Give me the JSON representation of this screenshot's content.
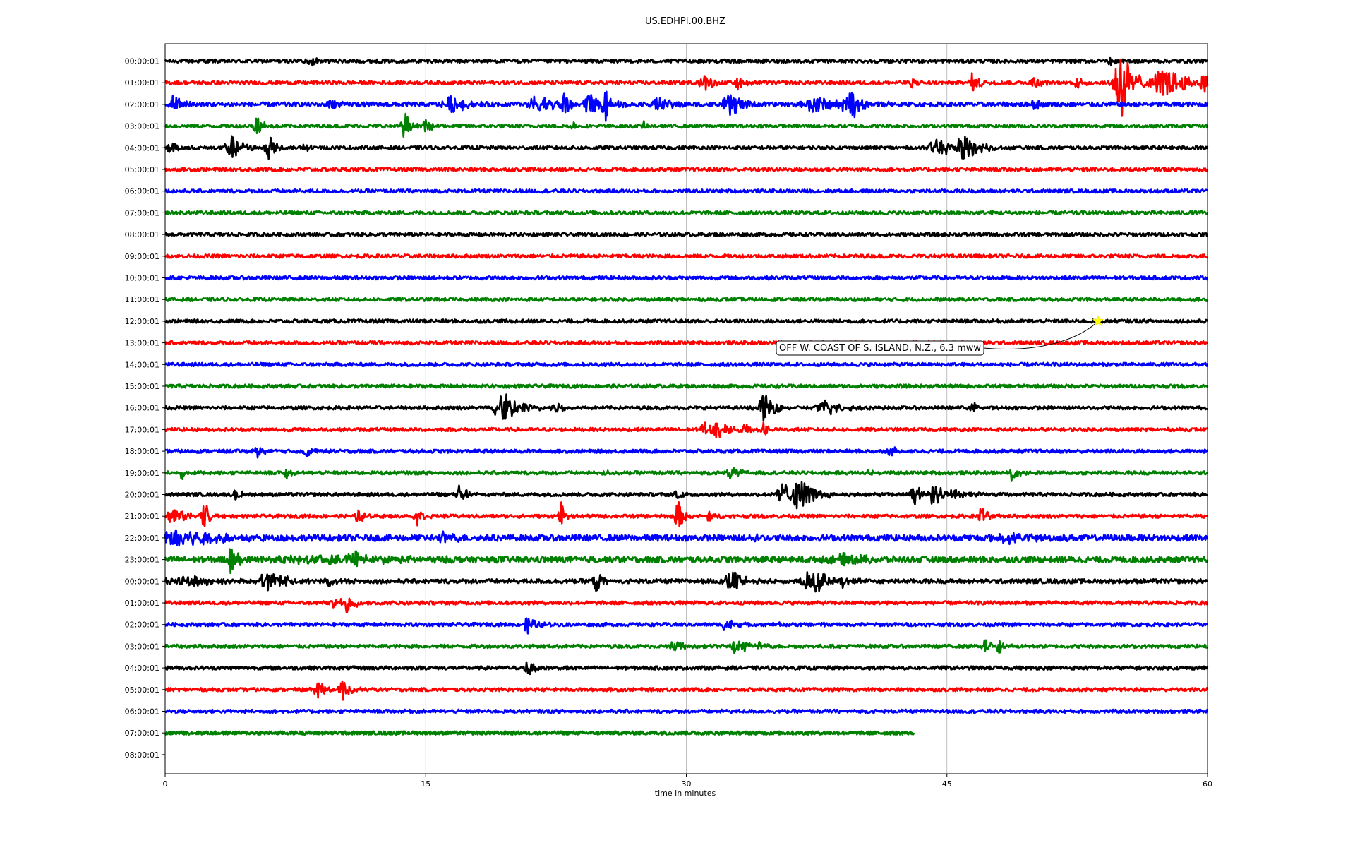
{
  "chart_data": {
    "type": "line",
    "title": "US.EDHPI.00.BHZ",
    "xlabel": "time in minutes",
    "ylabel": "",
    "xlim": [
      0,
      60
    ],
    "x_ticks": [
      0,
      15,
      30,
      45,
      60
    ],
    "grid": "vertical",
    "row_labels": [
      "00:00:01",
      "01:00:01",
      "02:00:01",
      "03:00:01",
      "04:00:01",
      "05:00:01",
      "06:00:01",
      "07:00:01",
      "08:00:01",
      "09:00:01",
      "10:00:01",
      "11:00:01",
      "12:00:01",
      "13:00:01",
      "14:00:01",
      "15:00:01",
      "16:00:01",
      "17:00:01",
      "18:00:01",
      "19:00:01",
      "20:00:01",
      "21:00:01",
      "22:00:01",
      "23:00:01",
      "00:00:01",
      "01:00:01",
      "02:00:01",
      "03:00:01",
      "04:00:01",
      "05:00:01",
      "06:00:01",
      "07:00:01",
      "08:00:01"
    ],
    "trace_colors": [
      "#000000",
      "#ff0000",
      "#0000ff",
      "#008000"
    ],
    "traces": [
      {
        "row": 0,
        "color": "#000000",
        "noise": 0.08,
        "end_minute": 60,
        "bursts": [
          {
            "t": 8.5,
            "amp": 0.2,
            "dur": 0.6
          },
          {
            "t": 54.5,
            "amp": 0.2,
            "dur": 0.6
          }
        ]
      },
      {
        "row": 1,
        "color": "#ff0000",
        "noise": 0.08,
        "end_minute": 60,
        "bursts": [
          {
            "t": 31.0,
            "amp": 0.5,
            "dur": 0.5
          },
          {
            "t": 33.0,
            "amp": 0.4,
            "dur": 0.5
          },
          {
            "t": 43.0,
            "amp": 0.3,
            "dur": 0.3
          },
          {
            "t": 46.5,
            "amp": 0.4,
            "dur": 0.6
          },
          {
            "t": 50.0,
            "amp": 0.3,
            "dur": 0.5
          },
          {
            "t": 52.5,
            "amp": 0.3,
            "dur": 0.5
          },
          {
            "t": 55.0,
            "amp": 1.8,
            "dur": 0.8
          },
          {
            "t": 57.5,
            "amp": 0.6,
            "dur": 2.0
          },
          {
            "t": 59.8,
            "amp": 0.4,
            "dur": 0.4
          }
        ]
      },
      {
        "row": 2,
        "color": "#0000ff",
        "noise": 0.1,
        "end_minute": 60,
        "bursts": [
          {
            "t": 0.5,
            "amp": 0.4,
            "dur": 0.6
          },
          {
            "t": 9.5,
            "amp": 0.3,
            "dur": 0.5
          },
          {
            "t": 16.5,
            "amp": 0.4,
            "dur": 1.0
          },
          {
            "t": 21.5,
            "amp": 0.4,
            "dur": 1.5
          },
          {
            "t": 23.0,
            "amp": 0.9,
            "dur": 0.3
          },
          {
            "t": 24.5,
            "amp": 0.5,
            "dur": 1.0
          },
          {
            "t": 25.3,
            "amp": 1.0,
            "dur": 0.3
          },
          {
            "t": 28.5,
            "amp": 0.3,
            "dur": 1.0
          },
          {
            "t": 32.5,
            "amp": 0.6,
            "dur": 0.8
          },
          {
            "t": 37.5,
            "amp": 0.4,
            "dur": 1.5
          },
          {
            "t": 39.5,
            "amp": 0.6,
            "dur": 1.0
          },
          {
            "t": 50.0,
            "amp": 0.3,
            "dur": 0.4
          }
        ]
      },
      {
        "row": 3,
        "color": "#008000",
        "noise": 0.08,
        "end_minute": 60,
        "bursts": [
          {
            "t": 5.3,
            "amp": 0.5,
            "dur": 0.5
          },
          {
            "t": 13.8,
            "amp": 0.6,
            "dur": 0.5
          },
          {
            "t": 15.0,
            "amp": 0.4,
            "dur": 0.3
          },
          {
            "t": 23.5,
            "amp": 0.2,
            "dur": 0.3
          },
          {
            "t": 27.5,
            "amp": 0.2,
            "dur": 0.3
          }
        ]
      },
      {
        "row": 4,
        "color": "#000000",
        "noise": 0.08,
        "end_minute": 60,
        "bursts": [
          {
            "t": 0.3,
            "amp": 0.4,
            "dur": 0.4
          },
          {
            "t": 3.8,
            "amp": 0.6,
            "dur": 0.7
          },
          {
            "t": 6.0,
            "amp": 0.6,
            "dur": 0.6
          },
          {
            "t": 8.0,
            "amp": 0.2,
            "dur": 0.5
          },
          {
            "t": 44.5,
            "amp": 0.4,
            "dur": 1.2
          },
          {
            "t": 46.0,
            "amp": 0.6,
            "dur": 1.0
          }
        ]
      },
      {
        "row": 5,
        "color": "#ff0000",
        "noise": 0.08,
        "end_minute": 60,
        "bursts": []
      },
      {
        "row": 6,
        "color": "#0000ff",
        "noise": 0.08,
        "end_minute": 60,
        "bursts": []
      },
      {
        "row": 7,
        "color": "#008000",
        "noise": 0.08,
        "end_minute": 60,
        "bursts": []
      },
      {
        "row": 8,
        "color": "#000000",
        "noise": 0.08,
        "end_minute": 60,
        "bursts": []
      },
      {
        "row": 9,
        "color": "#ff0000",
        "noise": 0.08,
        "end_minute": 60,
        "bursts": []
      },
      {
        "row": 10,
        "color": "#0000ff",
        "noise": 0.08,
        "end_minute": 60,
        "bursts": []
      },
      {
        "row": 11,
        "color": "#008000",
        "noise": 0.08,
        "end_minute": 60,
        "bursts": []
      },
      {
        "row": 12,
        "color": "#000000",
        "noise": 0.08,
        "end_minute": 60,
        "bursts": []
      },
      {
        "row": 13,
        "color": "#ff0000",
        "noise": 0.08,
        "end_minute": 60,
        "bursts": []
      },
      {
        "row": 14,
        "color": "#0000ff",
        "noise": 0.08,
        "end_minute": 60,
        "bursts": []
      },
      {
        "row": 15,
        "color": "#008000",
        "noise": 0.08,
        "end_minute": 60,
        "bursts": []
      },
      {
        "row": 16,
        "color": "#000000",
        "noise": 0.08,
        "end_minute": 60,
        "bursts": [
          {
            "t": 19.3,
            "amp": 1.1,
            "dur": 0.8
          },
          {
            "t": 20.5,
            "amp": 0.3,
            "dur": 1.0
          },
          {
            "t": 22.5,
            "amp": 0.2,
            "dur": 0.6
          },
          {
            "t": 34.5,
            "amp": 0.6,
            "dur": 0.8
          },
          {
            "t": 38.0,
            "amp": 0.4,
            "dur": 1.0
          },
          {
            "t": 46.5,
            "amp": 0.3,
            "dur": 0.4
          },
          {
            "t": 52.5,
            "amp": 0.15,
            "dur": 0.3
          }
        ]
      },
      {
        "row": 17,
        "color": "#ff0000",
        "noise": 0.08,
        "end_minute": 60,
        "bursts": [
          {
            "t": 31.0,
            "amp": 0.6,
            "dur": 0.3
          },
          {
            "t": 31.8,
            "amp": 0.5,
            "dur": 0.6
          },
          {
            "t": 33.2,
            "amp": 0.3,
            "dur": 0.5
          },
          {
            "t": 34.5,
            "amp": 0.3,
            "dur": 0.4
          }
        ]
      },
      {
        "row": 18,
        "color": "#0000ff",
        "noise": 0.08,
        "end_minute": 60,
        "bursts": [
          {
            "t": 5.3,
            "amp": 0.3,
            "dur": 0.4
          },
          {
            "t": 8.2,
            "amp": 0.3,
            "dur": 0.4
          },
          {
            "t": 41.8,
            "amp": 0.3,
            "dur": 0.4
          }
        ]
      },
      {
        "row": 19,
        "color": "#008000",
        "noise": 0.08,
        "end_minute": 60,
        "bursts": [
          {
            "t": 1.0,
            "amp": 0.3,
            "dur": 0.3
          },
          {
            "t": 7.0,
            "amp": 0.3,
            "dur": 0.3
          },
          {
            "t": 25.2,
            "amp": 0.2,
            "dur": 0.3
          },
          {
            "t": 32.6,
            "amp": 0.4,
            "dur": 0.5
          },
          {
            "t": 40.5,
            "amp": 0.15,
            "dur": 0.3
          },
          {
            "t": 48.8,
            "amp": 0.4,
            "dur": 0.4
          }
        ]
      },
      {
        "row": 20,
        "color": "#000000",
        "noise": 0.08,
        "end_minute": 60,
        "bursts": [
          {
            "t": 4.1,
            "amp": 0.4,
            "dur": 0.3
          },
          {
            "t": 17.0,
            "amp": 0.6,
            "dur": 0.4
          },
          {
            "t": 29.5,
            "amp": 0.3,
            "dur": 0.4
          },
          {
            "t": 35.5,
            "amp": 0.7,
            "dur": 0.6
          },
          {
            "t": 36.5,
            "amp": 0.8,
            "dur": 1.0
          },
          {
            "t": 43.1,
            "amp": 0.7,
            "dur": 0.5
          },
          {
            "t": 44.2,
            "amp": 0.8,
            "dur": 0.5
          },
          {
            "t": 45.5,
            "amp": 0.2,
            "dur": 1.0
          }
        ]
      },
      {
        "row": 21,
        "color": "#ff0000",
        "noise": 0.08,
        "end_minute": 60,
        "bursts": [
          {
            "t": 0.5,
            "amp": 0.5,
            "dur": 0.8
          },
          {
            "t": 2.2,
            "amp": 0.8,
            "dur": 0.4
          },
          {
            "t": 11.1,
            "amp": 0.5,
            "dur": 0.3
          },
          {
            "t": 14.5,
            "amp": 0.4,
            "dur": 0.5
          },
          {
            "t": 22.8,
            "amp": 0.6,
            "dur": 0.3
          },
          {
            "t": 29.5,
            "amp": 0.8,
            "dur": 0.4
          },
          {
            "t": 31.3,
            "amp": 0.3,
            "dur": 0.3
          },
          {
            "t": 47.0,
            "amp": 0.5,
            "dur": 0.4
          }
        ]
      },
      {
        "row": 22,
        "color": "#0000ff",
        "noise": 0.14,
        "end_minute": 60,
        "bursts": [
          {
            "t": 1.0,
            "amp": 0.5,
            "dur": 2.5
          },
          {
            "t": 16.0,
            "amp": 0.2,
            "dur": 1.0
          },
          {
            "t": 34.0,
            "amp": 0.2,
            "dur": 0.3
          },
          {
            "t": 48.5,
            "amp": 0.2,
            "dur": 2.0
          }
        ]
      },
      {
        "row": 23,
        "color": "#008000",
        "noise": 0.14,
        "end_minute": 60,
        "bursts": [
          {
            "t": 3.8,
            "amp": 0.6,
            "dur": 0.5
          },
          {
            "t": 10.9,
            "amp": 0.5,
            "dur": 0.3
          },
          {
            "t": 9.0,
            "amp": 0.2,
            "dur": 5.0
          },
          {
            "t": 39.0,
            "amp": 0.2,
            "dur": 2.0
          }
        ]
      },
      {
        "row": 24,
        "color": "#000000",
        "noise": 0.1,
        "end_minute": 60,
        "bursts": [
          {
            "t": 1.0,
            "amp": 0.3,
            "dur": 2.0
          },
          {
            "t": 6.0,
            "amp": 0.4,
            "dur": 1.5
          },
          {
            "t": 9.4,
            "amp": 0.4,
            "dur": 0.3
          },
          {
            "t": 24.8,
            "amp": 0.6,
            "dur": 0.4
          },
          {
            "t": 32.6,
            "amp": 0.6,
            "dur": 0.8
          },
          {
            "t": 36.8,
            "amp": 0.7,
            "dur": 0.4
          },
          {
            "t": 37.5,
            "amp": 0.5,
            "dur": 0.8
          },
          {
            "t": 39.0,
            "amp": 0.3,
            "dur": 0.6
          }
        ]
      },
      {
        "row": 25,
        "color": "#ff0000",
        "noise": 0.08,
        "end_minute": 60,
        "bursts": [
          {
            "t": 9.8,
            "amp": 0.3,
            "dur": 0.4
          },
          {
            "t": 10.5,
            "amp": 0.5,
            "dur": 0.5
          }
        ]
      },
      {
        "row": 26,
        "color": "#0000ff",
        "noise": 0.08,
        "end_minute": 60,
        "bursts": [
          {
            "t": 20.9,
            "amp": 0.4,
            "dur": 0.6
          },
          {
            "t": 32.3,
            "amp": 0.4,
            "dur": 0.5
          },
          {
            "t": 35.0,
            "amp": 0.15,
            "dur": 0.4
          },
          {
            "t": 38.0,
            "amp": 0.15,
            "dur": 0.3
          }
        ]
      },
      {
        "row": 27,
        "color": "#008000",
        "noise": 0.08,
        "end_minute": 60,
        "bursts": [
          {
            "t": 29.3,
            "amp": 0.5,
            "dur": 0.4
          },
          {
            "t": 32.8,
            "amp": 0.4,
            "dur": 0.5
          },
          {
            "t": 33.3,
            "amp": 0.5,
            "dur": 0.3
          },
          {
            "t": 34.2,
            "amp": 0.2,
            "dur": 0.4
          },
          {
            "t": 47.2,
            "amp": 0.3,
            "dur": 0.5
          },
          {
            "t": 48.0,
            "amp": 0.3,
            "dur": 0.4
          }
        ]
      },
      {
        "row": 28,
        "color": "#000000",
        "noise": 0.08,
        "end_minute": 60,
        "bursts": [
          {
            "t": 20.9,
            "amp": 0.4,
            "dur": 0.5
          }
        ]
      },
      {
        "row": 29,
        "color": "#ff0000",
        "noise": 0.08,
        "end_minute": 60,
        "bursts": [
          {
            "t": 8.8,
            "amp": 0.4,
            "dur": 0.6
          },
          {
            "t": 10.2,
            "amp": 0.6,
            "dur": 0.5
          }
        ]
      },
      {
        "row": 30,
        "color": "#0000ff",
        "noise": 0.08,
        "end_minute": 60,
        "bursts": []
      },
      {
        "row": 31,
        "color": "#008000",
        "noise": 0.08,
        "end_minute": 43.1,
        "bursts": []
      }
    ],
    "annotation": {
      "text": "OFF W. COAST OF S. ISLAND, N.Z., 6.3 mww",
      "row": 12,
      "minute": 53.7,
      "marker": "star",
      "marker_color": "#ffff00"
    }
  }
}
